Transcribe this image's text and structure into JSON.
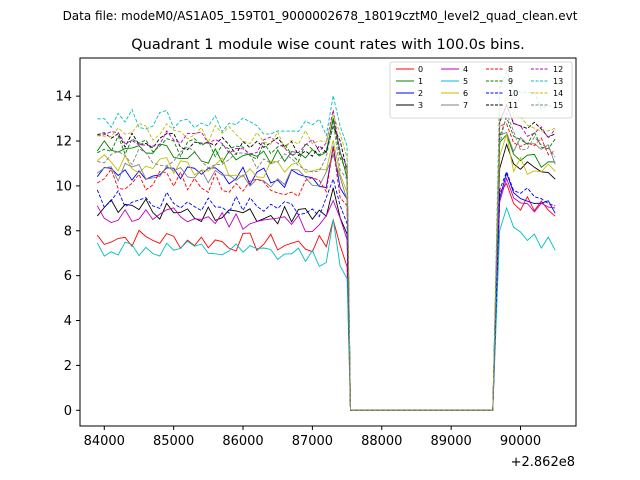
{
  "chart_data": {
    "type": "line",
    "suptitle": "Data file: modeM0/AS1A05_159T01_9000002678_18019cztM0_level2_quad_clean.evt",
    "title": "Quadrant 1 module wise count rates with 100.0s bins.",
    "xlabel": "",
    "ylabel": "",
    "x_offset_label": "+2.862e8",
    "xlim": [
      83650,
      90800
    ],
    "ylim": [
      -0.7,
      15.7
    ],
    "x_ticks": [
      84000,
      85000,
      86000,
      87000,
      88000,
      89000,
      90000
    ],
    "x_tick_labels": [
      "84000",
      "85000",
      "86000",
      "87000",
      "88000",
      "89000",
      "90000"
    ],
    "y_ticks": [
      0,
      2,
      4,
      6,
      8,
      10,
      12,
      14
    ],
    "y_tick_labels": [
      "0",
      "2",
      "4",
      "6",
      "8",
      "10",
      "12",
      "14"
    ],
    "segment_1": {
      "x_start": 83900,
      "x_step": 100,
      "count": 37
    },
    "gap": {
      "x_start": 87550,
      "x_end": 89600,
      "value": 0
    },
    "segment_2": {
      "x_start": 89700,
      "x_step": 100,
      "count": 9
    },
    "legend_position": "upper right",
    "series": [
      {
        "name": "0",
        "color": "#ff0000",
        "style": "solid",
        "level1": 7.3,
        "level2": 9.5
      },
      {
        "name": "1",
        "color": "#008000",
        "style": "solid",
        "level1": 11.2,
        "level2": 11.6
      },
      {
        "name": "2",
        "color": "#0000ff",
        "style": "solid",
        "level1": 10.2,
        "level2": 9.8
      },
      {
        "name": "3",
        "color": "#000000",
        "style": "solid",
        "level1": 8.6,
        "level2": 11.0
      },
      {
        "name": "4",
        "color": "#bf00bf",
        "style": "solid",
        "level1": 8.3,
        "level2": 9.4
      },
      {
        "name": "5",
        "color": "#00bfbf",
        "style": "solid",
        "level1": 6.8,
        "level2": 8.0
      },
      {
        "name": "6",
        "color": "#bfbf00",
        "style": "solid",
        "level1": 10.6,
        "level2": 11.2
      },
      {
        "name": "7",
        "color": "#808080",
        "style": "solid",
        "level1": 10.2,
        "level2": 12.0
      },
      {
        "name": "8",
        "color": "#ff0000",
        "style": "dashed",
        "level1": 9.9,
        "level2": 12.3
      },
      {
        "name": "9",
        "color": "#008000",
        "style": "dashed",
        "level1": 11.4,
        "level2": 12.5
      },
      {
        "name": "10",
        "color": "#0000ff",
        "style": "dashed",
        "level1": 9.0,
        "level2": 10.0
      },
      {
        "name": "11",
        "color": "#000000",
        "style": "dashed",
        "level1": 11.6,
        "level2": 12.9
      },
      {
        "name": "12",
        "color": "#bf00bf",
        "style": "dashed",
        "level1": 11.7,
        "level2": 12.8
      },
      {
        "name": "13",
        "color": "#00bfbf",
        "style": "dashed",
        "level1": 12.6,
        "level2": 14.2
      },
      {
        "name": "14",
        "color": "#bfbf00",
        "style": "dashed",
        "level1": 12.0,
        "level2": 13.0
      },
      {
        "name": "15",
        "color": "#808080",
        "style": "dashed",
        "level1": 11.0,
        "level2": 12.2
      }
    ]
  }
}
